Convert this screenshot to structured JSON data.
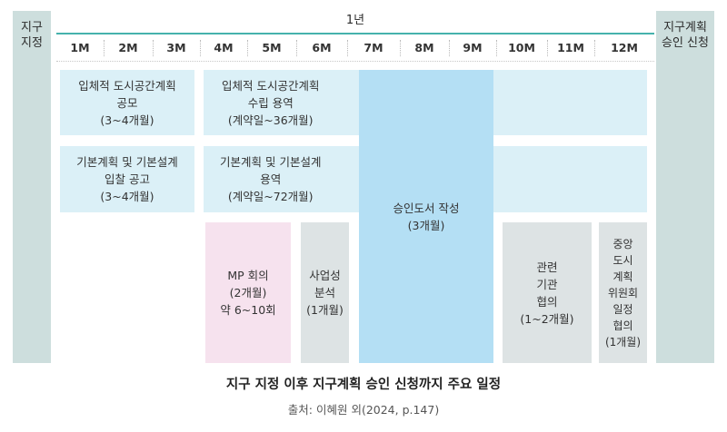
{
  "left_header": [
    "지구",
    "지정"
  ],
  "right_header": [
    "지구계획",
    "승인 신청"
  ],
  "year_label": "1년",
  "months": [
    "1M",
    "2M",
    "3M",
    "4M",
    "5M",
    "6M",
    "7M",
    "8M",
    "9M",
    "10M",
    "11M",
    "12M"
  ],
  "blocks": {
    "competition": [
      "입체적 도시공간계획",
      "공모",
      "(3~4개월)"
    ],
    "urban_design": [
      "입체적 도시공간계획",
      "수립 용역",
      "(계약일~36개월)"
    ],
    "bid": [
      "기본계획 및 기본설계",
      "입찰 공고",
      "(3~4개월)"
    ],
    "design_service": [
      "기본계획 및 기본설계",
      "용역",
      "(계약일~72개월)"
    ],
    "approval_docs": [
      "승인도서 작성",
      "(3개월)"
    ],
    "mp_meeting": [
      "MP 회의",
      "(2개월)",
      "약 6~10회"
    ],
    "feasibility": [
      "사업성",
      "분석",
      "(1개월)"
    ],
    "agency": [
      "관련",
      "기관",
      "협의",
      "(1~2개월)"
    ],
    "central": [
      "중앙",
      "도시",
      "계획",
      "위원회",
      "일정",
      "협의",
      "(1개월)"
    ]
  },
  "caption": "지구 지정 이후 지구계획 승인 신청까지 주요 일정",
  "source": "출처: 이혜원 외(2024, p.147)",
  "colors": {
    "side": "#cddedd",
    "light_blue": "#dbf0f7",
    "mid_blue": "#b4dff4",
    "pink": "#f6e2ee",
    "gray": "#dde3e4",
    "teal_line": "#46b2ad"
  }
}
